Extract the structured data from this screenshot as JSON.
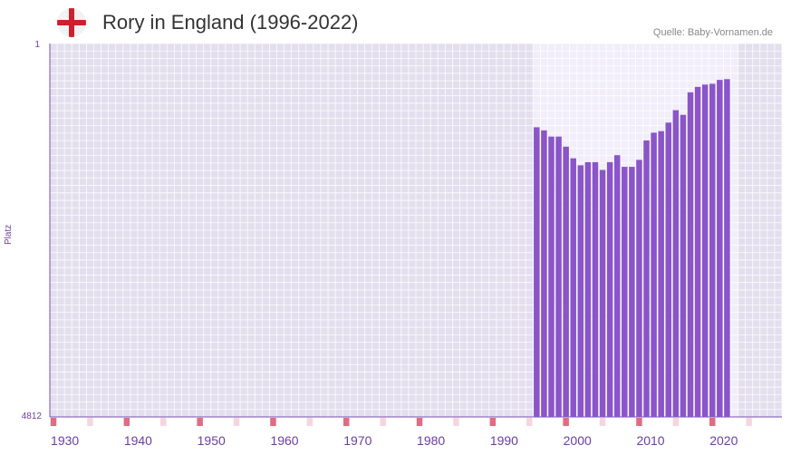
{
  "header": {
    "title": "Rory in England (1996-2022)",
    "source": "Quelle: Baby-Vornamen.de",
    "flag_icon": "england-flag-icon"
  },
  "colors": {
    "bar": "#8a55c8",
    "bg_band": "#e3dfee",
    "range_band": "#f1eefa",
    "axis_text": "#6a3fa0",
    "marker_strong": "#e06c80",
    "marker_light": "#f6d6dd"
  },
  "chart_data": {
    "type": "bar",
    "title": "Rory in England (1996-2022)",
    "xlabel": "",
    "ylabel": "Platz",
    "y_axis_inverted": true,
    "ylim": [
      1,
      4812
    ],
    "ytick_labels": [
      "1",
      "4812"
    ],
    "xlim": [
      1929,
      2029
    ],
    "xtick_labels": [
      "1930",
      "1940",
      "1950",
      "1960",
      "1970",
      "1980",
      "1990",
      "2000",
      "2010",
      "2020"
    ],
    "highlight_range": [
      1996,
      2022
    ],
    "years": [
      1996,
      1997,
      1998,
      1999,
      2000,
      2001,
      2002,
      2003,
      2004,
      2005,
      2006,
      2007,
      2008,
      2009,
      2010,
      2011,
      2012,
      2013,
      2014,
      2015,
      2016,
      2017,
      2018,
      2019,
      2020,
      2021,
      2022
    ],
    "ranks": [
      1080,
      1120,
      1200,
      1200,
      1330,
      1480,
      1570,
      1530,
      1530,
      1630,
      1530,
      1440,
      1590,
      1590,
      1500,
      1250,
      1150,
      1130,
      1020,
      860,
      920,
      630,
      560,
      530,
      520,
      470,
      460
    ]
  }
}
